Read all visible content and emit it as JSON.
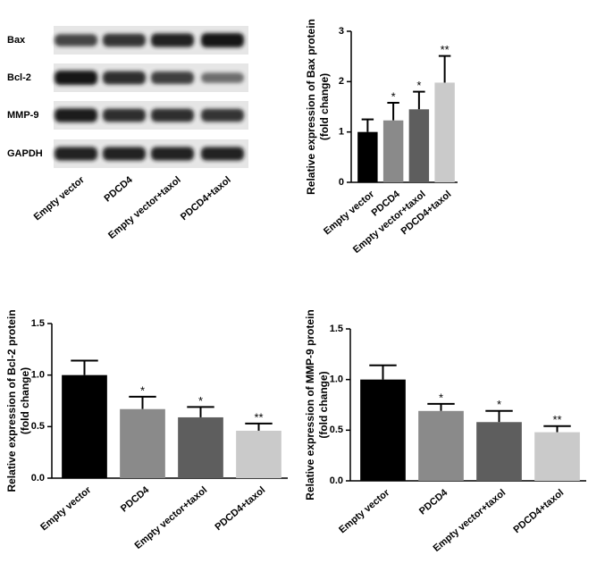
{
  "blot": {
    "rows": [
      "Bax",
      "Bcl-2",
      "MMP-9",
      "GAPDH"
    ],
    "lanes": [
      "Empty vector",
      "PDCD4",
      "Empty vector+taxol",
      "PDCD4+taxol"
    ]
  },
  "chart_data": [
    {
      "type": "bar",
      "ylabel": [
        "Relative expression of Bax protein",
        "(fold change)"
      ],
      "categories": [
        "Empty vector",
        "PDCD4",
        "Empty vector+taxol",
        "PDCD4+taxol"
      ],
      "values": [
        1.0,
        1.23,
        1.45,
        1.98
      ],
      "errors": [
        0.25,
        0.35,
        0.35,
        0.53
      ],
      "labels": [
        null,
        "*",
        "*",
        "**"
      ],
      "colors": [
        "#000000",
        "#8a8a8a",
        "#5e5e5e",
        "#cacaca"
      ],
      "ylim": [
        0,
        3
      ],
      "yticks": [
        0,
        1,
        2,
        3
      ]
    },
    {
      "type": "bar",
      "ylabel": [
        "Relative expression of Bcl-2 protein",
        "(fold change)"
      ],
      "categories": [
        "Empty vector",
        "PDCD4",
        "Empty vector+taxol",
        "PDCD4+taxol"
      ],
      "values": [
        1.0,
        0.67,
        0.59,
        0.46
      ],
      "errors": [
        0.14,
        0.12,
        0.1,
        0.07
      ],
      "labels": [
        null,
        "*",
        "*",
        "**"
      ],
      "colors": [
        "#000000",
        "#8a8a8a",
        "#5e5e5e",
        "#cacaca"
      ],
      "ylim": [
        0,
        1.5
      ],
      "yticks": [
        {
          "value": 0,
          "label": "0.0"
        },
        0.5,
        {
          "value": 1,
          "label": "1.0"
        },
        1.5
      ]
    },
    {
      "type": "bar",
      "ylabel": [
        "Relative expression of MMP-9 protein",
        "(fold change)"
      ],
      "categories": [
        "Empty vector",
        "PDCD4",
        "Empty vector+taxol",
        "PDCD4+taxol"
      ],
      "values": [
        1.0,
        0.69,
        0.58,
        0.48
      ],
      "errors": [
        0.14,
        0.07,
        0.11,
        0.06
      ],
      "labels": [
        null,
        "*",
        "*",
        "**"
      ],
      "colors": [
        "#000000",
        "#8a8a8a",
        "#5e5e5e",
        "#cacaca"
      ],
      "ylim": [
        0,
        1.5
      ],
      "yticks": [
        {
          "value": 0,
          "label": "0.0"
        },
        0.5,
        {
          "value": 1,
          "label": "1.0"
        },
        1.5
      ]
    }
  ]
}
